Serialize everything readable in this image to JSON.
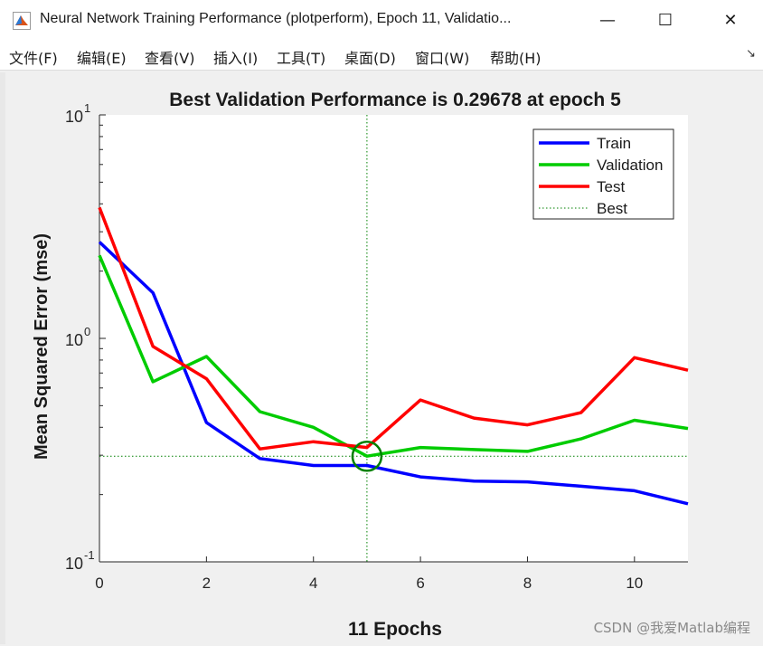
{
  "window": {
    "title": "Neural Network Training Performance (plotperform), Epoch 11, Validatio...",
    "app_icon": "matlab-icon",
    "controls": {
      "minimize": "—",
      "maximize": "☐",
      "close": "✕"
    }
  },
  "menu": {
    "items": [
      {
        "label": "文件(F)"
      },
      {
        "label": "编辑(E)"
      },
      {
        "label": "查看(V)"
      },
      {
        "label": "插入(I)"
      },
      {
        "label": "工具(T)"
      },
      {
        "label": "桌面(D)"
      },
      {
        "label": "窗口(W)"
      },
      {
        "label": "帮助(H)"
      }
    ],
    "dock_icon": "dock-arrow-icon"
  },
  "chart_data": {
    "type": "line",
    "title": "Best Validation Performance is 0.29678 at epoch 5",
    "xlabel": "11 Epochs",
    "ylabel": "Mean Squared Error  (mse)",
    "xlim": [
      0,
      11
    ],
    "ylim": [
      0.1,
      10
    ],
    "yscale": "log",
    "x_ticks": [
      0,
      2,
      4,
      6,
      8,
      10
    ],
    "y_ticks": [
      {
        "value": 10,
        "base": "10",
        "exp": "1"
      },
      {
        "value": 1,
        "base": "10",
        "exp": "0"
      },
      {
        "value": 0.1,
        "base": "10",
        "exp": "-1"
      }
    ],
    "grid": false,
    "legend_position": "top-right",
    "x": [
      0,
      1,
      2,
      3,
      4,
      5,
      6,
      7,
      8,
      9,
      10,
      11
    ],
    "series": [
      {
        "name": "Train",
        "color": "#0000ff",
        "values": [
          2.7,
          1.6,
          0.42,
          0.29,
          0.27,
          0.27,
          0.24,
          0.23,
          0.228,
          0.218,
          0.208,
          0.182
        ]
      },
      {
        "name": "Validation",
        "color": "#00cc00",
        "values": [
          2.35,
          0.64,
          0.83,
          0.47,
          0.4,
          0.297,
          0.325,
          0.318,
          0.312,
          0.355,
          0.43,
          0.395
        ]
      },
      {
        "name": "Test",
        "color": "#ff0000",
        "values": [
          3.85,
          0.92,
          0.66,
          0.32,
          0.345,
          0.325,
          0.53,
          0.44,
          0.41,
          0.465,
          0.82,
          0.72
        ]
      }
    ],
    "best": {
      "name": "Best",
      "epoch": 5,
      "value": 0.29678,
      "color": "#008000"
    }
  },
  "watermark": "CSDN @我爱Matlab编程"
}
